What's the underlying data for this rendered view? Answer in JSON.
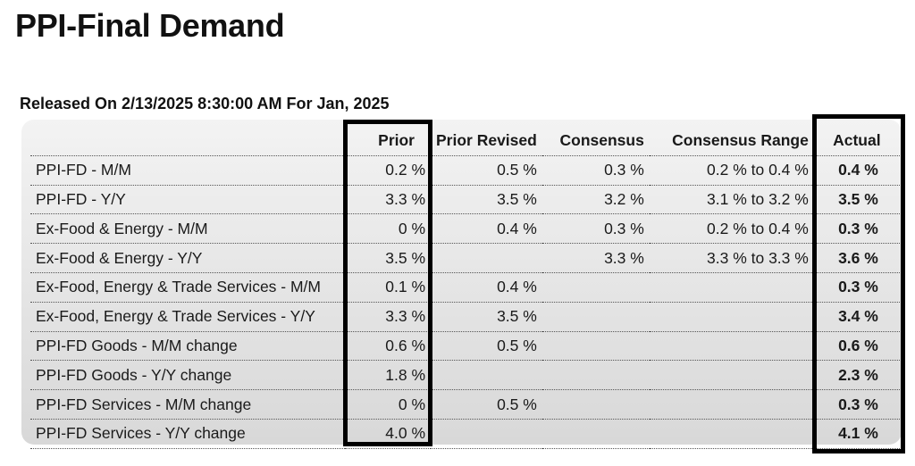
{
  "page_title": "PPI-Final Demand",
  "released": "Released On 2/13/2025 8:30:00 AM For Jan, 2025",
  "table": {
    "headers": {
      "label": "",
      "prior": "Prior",
      "prior_revised": "Prior Revised",
      "consensus": "Consensus",
      "consensus_range": "Consensus Range",
      "actual": "Actual"
    },
    "rows": [
      {
        "label": "PPI-FD - M/M",
        "prior": "0.2 %",
        "prior_revised": "0.5 %",
        "consensus": "0.3 %",
        "consensus_range": "0.2 % to 0.4 %",
        "actual": "0.4 %"
      },
      {
        "label": "PPI-FD - Y/Y",
        "prior": "3.3 %",
        "prior_revised": "3.5 %",
        "consensus": "3.2 %",
        "consensus_range": "3.1 % to 3.2 %",
        "actual": "3.5 %"
      },
      {
        "label": "Ex-Food & Energy - M/M",
        "prior": "0 %",
        "prior_revised": "0.4 %",
        "consensus": "0.3 %",
        "consensus_range": "0.2 % to 0.4 %",
        "actual": "0.3 %"
      },
      {
        "label": "Ex-Food & Energy - Y/Y",
        "prior": "3.5 %",
        "prior_revised": "",
        "consensus": "3.3 %",
        "consensus_range": "3.3 % to 3.3 %",
        "actual": "3.6 %"
      },
      {
        "label": "Ex-Food, Energy & Trade Services - M/M",
        "prior": "0.1 %",
        "prior_revised": "0.4 %",
        "consensus": "",
        "consensus_range": "",
        "actual": "0.3 %"
      },
      {
        "label": "Ex-Food, Energy & Trade Services - Y/Y",
        "prior": "3.3 %",
        "prior_revised": "3.5 %",
        "consensus": "",
        "consensus_range": "",
        "actual": "3.4 %"
      },
      {
        "label": "PPI-FD Goods - M/M change",
        "prior": "0.6 %",
        "prior_revised": "0.5 %",
        "consensus": "",
        "consensus_range": "",
        "actual": "0.6 %"
      },
      {
        "label": "PPI-FD Goods - Y/Y change",
        "prior": "1.8 %",
        "prior_revised": "",
        "consensus": "",
        "consensus_range": "",
        "actual": "2.3 %"
      },
      {
        "label": "PPI-FD Services - M/M change",
        "prior": "0 %",
        "prior_revised": "0.5 %",
        "consensus": "",
        "consensus_range": "",
        "actual": "0.3 %"
      },
      {
        "label": "PPI-FD Services - Y/Y change",
        "prior": "4.0 %",
        "prior_revised": "",
        "consensus": "",
        "consensus_range": "",
        "actual": "4.1 %"
      }
    ]
  },
  "colors": {
    "highlight_border": "#000000",
    "panel_top": "#f3f3f3",
    "panel_bottom": "#d8d8d8"
  }
}
